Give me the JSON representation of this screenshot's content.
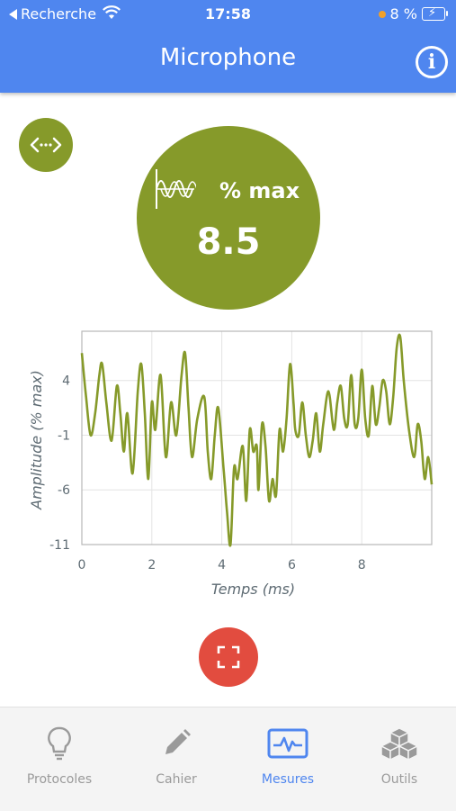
{
  "status_bar": {
    "back_label": "Recherche",
    "time": "17:58",
    "battery": "8 %"
  },
  "header": {
    "title": "Microphone",
    "info_icon": "i"
  },
  "measurement": {
    "unit": "% max",
    "value": "8.5"
  },
  "colors": {
    "header": "#4f86ef",
    "olive": "#869a2a",
    "record": "#e24c3f",
    "active_tab": "#4f86ef"
  },
  "chart_data": {
    "type": "line",
    "xlabel": "Temps (ms)",
    "ylabel": "Amplitude (% max)",
    "xlim": [
      0,
      10
    ],
    "ylim": [
      -11,
      8.5
    ],
    "xticks": [
      0,
      2,
      4,
      6,
      8
    ],
    "yticks": [
      4,
      -1,
      -6,
      -11
    ],
    "grid": true,
    "series": [
      {
        "color": "#869a2a",
        "x": [
          0,
          0.12,
          0.25,
          0.38,
          0.5,
          0.58,
          0.7,
          0.85,
          1.0,
          1.1,
          1.2,
          1.3,
          1.45,
          1.6,
          1.7,
          1.8,
          1.9,
          2.0,
          2.1,
          2.25,
          2.4,
          2.55,
          2.7,
          2.85,
          2.95,
          3.05,
          3.15,
          3.3,
          3.5,
          3.6,
          3.7,
          3.8,
          3.9,
          4.05,
          4.15,
          4.25,
          4.35,
          4.45,
          4.6,
          4.7,
          4.8,
          4.9,
          5.0,
          5.05,
          5.15,
          5.25,
          5.35,
          5.45,
          5.55,
          5.65,
          5.75,
          5.85,
          5.95,
          6.05,
          6.1,
          6.2,
          6.3,
          6.4,
          6.5,
          6.6,
          6.7,
          6.8,
          6.9,
          7.05,
          7.2,
          7.3,
          7.4,
          7.5,
          7.6,
          7.7,
          7.8,
          7.9,
          8.0,
          8.1,
          8.2,
          8.3,
          8.4,
          8.5,
          8.6,
          8.7,
          8.8,
          8.9,
          9.0,
          9.1,
          9.2,
          9.35,
          9.5,
          9.6,
          9.7,
          9.8,
          9.9,
          10.0
        ],
        "y": [
          6.5,
          2.5,
          -1.0,
          1.0,
          4.5,
          5.5,
          2.0,
          -1.5,
          3.5,
          1.0,
          -2.5,
          1.0,
          -4.5,
          3.0,
          5.5,
          1.0,
          -5.0,
          2.0,
          -0.5,
          4.5,
          -3.0,
          2.0,
          -1.0,
          4.5,
          6.5,
          1.5,
          -3.0,
          0.5,
          2.5,
          -2.5,
          -5.0,
          -1.0,
          1.5,
          -4.0,
          -8.0,
          -11.0,
          -4.0,
          -5.0,
          -2.0,
          -7.0,
          -0.5,
          -2.5,
          -2.0,
          -6.0,
          0.0,
          -2.0,
          -7.0,
          -5.0,
          -6.5,
          -0.5,
          -2.5,
          0.5,
          5.5,
          2.0,
          -0.5,
          -1.0,
          2.0,
          -1.0,
          -3.0,
          -1.5,
          1.0,
          -2.5,
          0.0,
          3.0,
          -0.5,
          2.0,
          3.5,
          0.5,
          0.0,
          4.5,
          0.0,
          0.5,
          5.0,
          0.5,
          -1.0,
          3.5,
          0.0,
          1.5,
          4.0,
          3.0,
          0.0,
          2.5,
          7.0,
          8.0,
          4.0,
          -0.5,
          -3.0,
          0.0,
          -1.5,
          -5.0,
          -3.0,
          -5.5
        ]
      }
    ]
  },
  "tabs": [
    {
      "label": "Protocoles",
      "icon": "lightbulb-icon",
      "active": false
    },
    {
      "label": "Cahier",
      "icon": "pencil-icon",
      "active": false
    },
    {
      "label": "Mesures",
      "icon": "waveform-monitor-icon",
      "active": true
    },
    {
      "label": "Outils",
      "icon": "cubes-icon",
      "active": false
    }
  ]
}
